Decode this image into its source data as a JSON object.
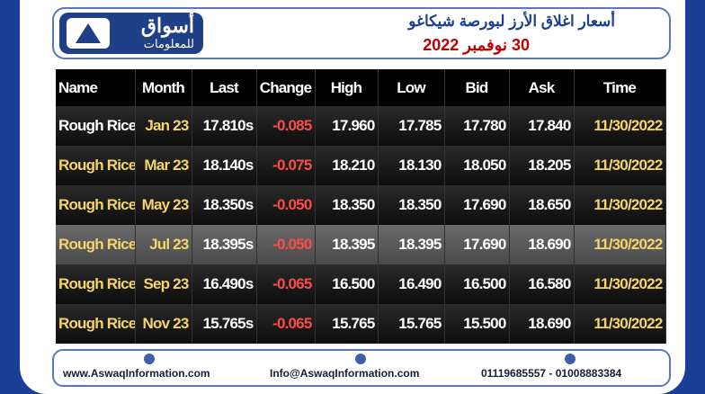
{
  "header": {
    "logo_name": "أسواق",
    "logo_sub": "للمعلومات",
    "title": "أسعار اغلاق الأرز لبورصة شيكاغو",
    "date": "30 نوفمبر 2022"
  },
  "table": {
    "columns": [
      "Name",
      "Month",
      "Last",
      "Change",
      "High",
      "Low",
      "Bid",
      "Ask",
      "Time"
    ],
    "rows": [
      [
        "Rough Rice",
        "Jan 23",
        "17.810s",
        "-0.085",
        "17.960",
        "17.785",
        "17.780",
        "17.840",
        "11/30/2022"
      ],
      [
        "Rough Rice",
        "Mar 23",
        "18.140s",
        "-0.075",
        "18.210",
        "18.130",
        "18.050",
        "18.205",
        "11/30/2022"
      ],
      [
        "Rough Rice",
        "May 23",
        "18.350s",
        "-0.050",
        "18.350",
        "18.350",
        "17.690",
        "18.650",
        "11/30/2022"
      ],
      [
        "Rough Rice",
        "Jul 23",
        "18.395s",
        "-0.050",
        "18.395",
        "18.395",
        "17.690",
        "18.690",
        "11/30/2022"
      ],
      [
        "Rough Rice",
        "Sep 23",
        "16.490s",
        "-0.065",
        "16.500",
        "16.490",
        "16.500",
        "16.580",
        "11/30/2022"
      ],
      [
        "Rough Rice",
        "Nov 23",
        "15.765s",
        "-0.065",
        "15.765",
        "15.765",
        "15.500",
        "18.690",
        "11/30/2022"
      ]
    ]
  },
  "footer": {
    "website": "www.AswaqInformation.com",
    "email": "Info@AswaqInformation.com",
    "phones": "01119685557 - 01008883384"
  }
}
